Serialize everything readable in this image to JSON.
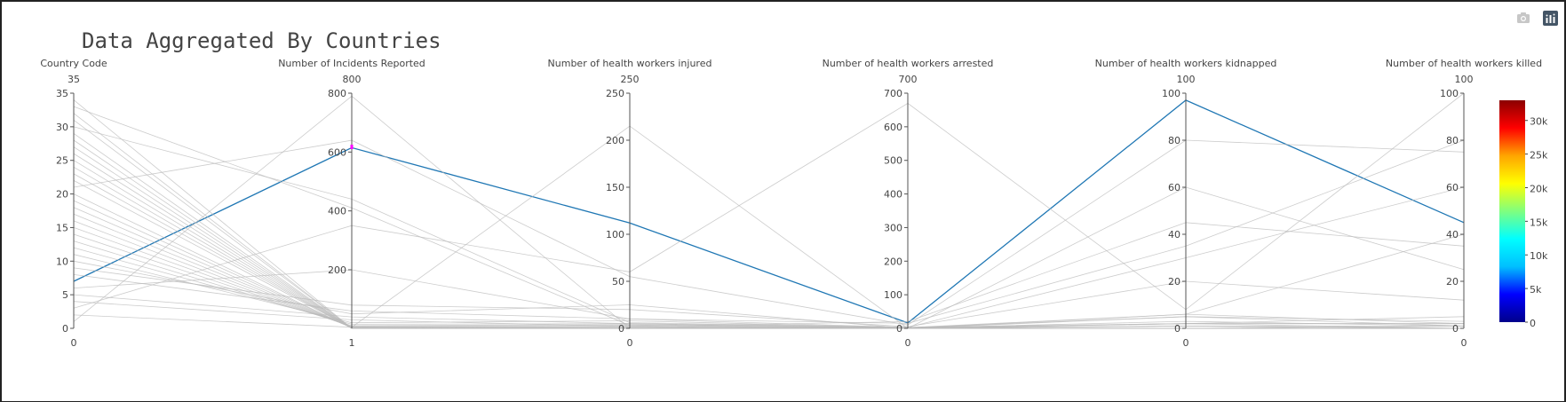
{
  "modebar": {
    "camera_icon": "camera-icon",
    "plotly_logo_icon": "plotly-logo-icon"
  },
  "chart_data": {
    "type": "parallel_coordinates",
    "title": "Data Aggregated By Countries",
    "axes": [
      {
        "label": "Country Code",
        "range": [
          0,
          35
        ],
        "ticks": [
          0,
          5,
          10,
          15,
          20,
          25,
          30,
          35
        ],
        "range_labels": [
          "35",
          "0"
        ]
      },
      {
        "label": "Number of Incidents Reported",
        "range": [
          1,
          800
        ],
        "ticks": [
          200,
          400,
          600,
          800
        ],
        "range_labels": [
          "800",
          "1"
        ]
      },
      {
        "label": "Number of health workers injured",
        "range": [
          0,
          250
        ],
        "ticks": [
          0,
          50,
          100,
          150,
          200,
          250
        ],
        "range_labels": [
          "250",
          "0"
        ]
      },
      {
        "label": "Number of health workers arrested",
        "range": [
          0,
          700
        ],
        "ticks": [
          0,
          100,
          200,
          300,
          400,
          500,
          600,
          700
        ],
        "range_labels": [
          "700",
          "0"
        ]
      },
      {
        "label": "Number of health workers kidnapped",
        "range": [
          0,
          100
        ],
        "ticks": [
          0,
          20,
          40,
          60,
          80,
          100
        ],
        "range_labels": [
          "100",
          "0"
        ]
      },
      {
        "label": "Number of health workers killed",
        "range": [
          0,
          100
        ],
        "ticks": [
          0,
          20,
          40,
          60,
          80,
          100
        ],
        "range_labels": [
          "100",
          "0"
        ]
      }
    ],
    "constraint": {
      "axis": 1,
      "range": [
        610,
        625
      ]
    },
    "highlight_color": "#1f77b4",
    "context_color": "#bbbbbb",
    "constraint_color": "#ff00ff",
    "colorbar": {
      "ticks": [
        "0",
        "5k",
        "10k",
        "15k",
        "20k",
        "25k",
        "30k"
      ],
      "tick_values": [
        0,
        5000,
        10000,
        15000,
        20000,
        25000,
        30000
      ],
      "max": 33000,
      "colorscale": [
        "#00008b",
        "#0000ff",
        "#00bfff",
        "#00ffff",
        "#7fff7f",
        "#ffff00",
        "#ffa500",
        "#ff0000",
        "#8b0000"
      ]
    },
    "rows": [
      [
        7,
        615,
        112,
        16,
        97,
        45
      ],
      [
        1,
        790,
        0,
        0,
        2,
        0
      ],
      [
        33,
        410,
        3,
        2,
        5,
        3
      ],
      [
        21,
        640,
        55,
        10,
        80,
        75
      ],
      [
        2,
        5,
        215,
        0,
        60,
        25
      ],
      [
        3,
        350,
        60,
        670,
        8,
        100
      ],
      [
        4,
        30,
        2,
        20,
        45,
        35
      ],
      [
        6,
        200,
        10,
        15,
        35,
        80
      ],
      [
        5,
        40,
        5,
        3,
        30,
        60
      ],
      [
        8,
        60,
        10,
        3,
        2,
        2
      ],
      [
        9,
        80,
        20,
        5,
        20,
        12
      ],
      [
        10,
        50,
        25,
        0,
        6,
        40
      ],
      [
        11,
        20,
        8,
        2,
        6,
        2
      ],
      [
        12,
        15,
        5,
        1,
        3,
        1
      ],
      [
        13,
        10,
        4,
        1,
        1,
        1
      ],
      [
        14,
        8,
        3,
        0,
        0,
        0
      ],
      [
        15,
        6,
        2,
        0,
        5,
        1
      ],
      [
        16,
        5,
        1,
        0,
        2,
        2
      ],
      [
        17,
        4,
        1,
        0,
        1,
        0
      ],
      [
        18,
        3,
        0,
        0,
        0,
        0
      ],
      [
        19,
        3,
        0,
        0,
        1,
        0
      ],
      [
        20,
        2,
        0,
        0,
        0,
        0
      ],
      [
        22,
        2,
        1,
        0,
        0,
        0
      ],
      [
        23,
        2,
        0,
        0,
        0,
        1
      ],
      [
        24,
        1,
        0,
        0,
        0,
        0
      ],
      [
        25,
        1,
        0,
        0,
        0,
        0
      ],
      [
        26,
        1,
        0,
        0,
        0,
        0
      ],
      [
        27,
        1,
        0,
        0,
        0,
        0
      ],
      [
        28,
        1,
        0,
        0,
        0,
        0
      ],
      [
        29,
        1,
        0,
        0,
        0,
        0
      ],
      [
        30,
        440,
        6,
        3,
        2,
        5
      ],
      [
        31,
        1,
        0,
        0,
        0,
        0
      ],
      [
        32,
        1,
        0,
        0,
        0,
        0
      ],
      [
        34,
        1,
        0,
        0,
        0,
        0
      ]
    ]
  }
}
